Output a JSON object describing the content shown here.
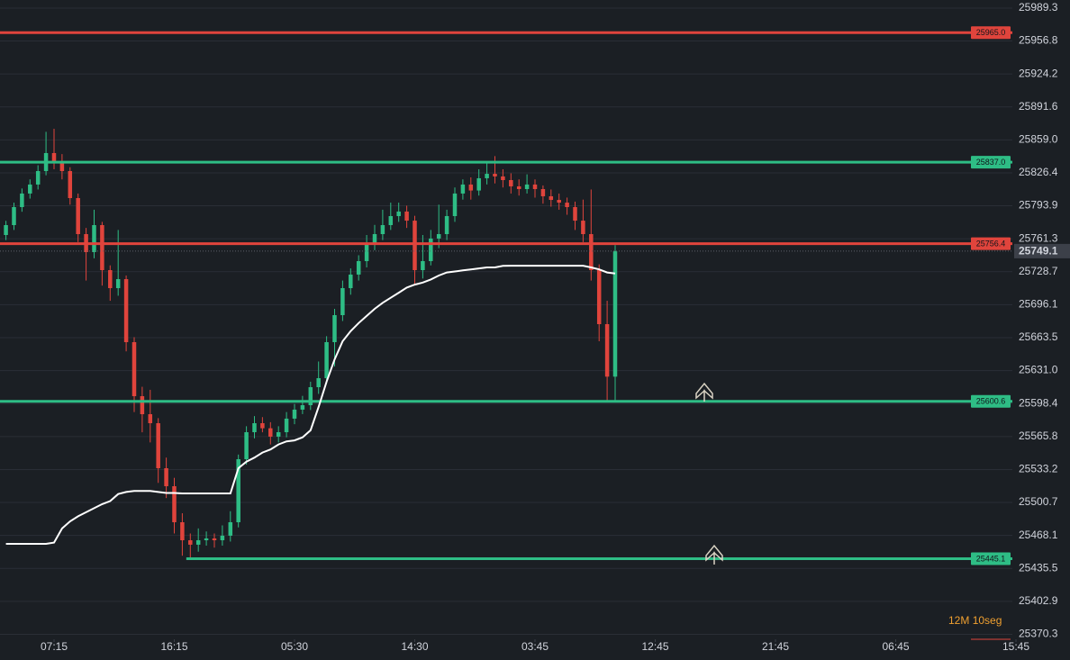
{
  "chart_data": {
    "type": "candlestick",
    "up_color": "#2ebd85",
    "down_color": "#e0443c",
    "x": [
      -6,
      -5,
      -4,
      -3,
      -2,
      -1,
      0,
      1,
      2,
      3,
      4,
      5,
      6,
      7,
      8,
      9,
      10,
      11,
      12,
      13,
      14,
      15,
      16,
      17,
      18,
      19,
      20,
      21,
      22,
      23,
      24,
      25,
      26,
      27,
      28,
      29,
      30,
      31,
      32,
      33,
      34,
      35,
      36,
      37,
      38,
      39,
      40,
      41,
      42,
      43,
      44,
      45,
      46,
      47,
      48,
      49,
      50,
      51,
      52,
      53,
      54,
      55,
      56,
      57,
      58,
      59,
      60,
      61,
      62,
      63,
      64,
      65,
      66,
      67,
      68,
      69,
      70
    ],
    "open": [
      25765.0,
      25774.8,
      25792.6,
      25806.0,
      25814.9,
      25828.2,
      25846.0,
      25837.1,
      25828.2,
      25801.5,
      25765.9,
      25748.1,
      25774.8,
      25730.3,
      25712.5,
      25721.4,
      25659.1,
      25605.7,
      25587.9,
      25579.0,
      25534.5,
      25516.7,
      25481.1,
      25463.3,
      25458.9,
      25463.3,
      25465.1,
      25463.3,
      25467.8,
      25481.1,
      25543.4,
      25570.1,
      25579.0,
      25574.0,
      25565.7,
      25570.1,
      25583.5,
      25592.4,
      25596.8,
      25614.6,
      25623.5,
      25659.1,
      25685.8,
      25712.5,
      25725.9,
      25739.2,
      25757.0,
      25765.9,
      25774.8,
      25783.7,
      25788.2,
      25779.2,
      25730.3,
      25739.2,
      25761.5,
      25765.9,
      25783.7,
      25806.0,
      25814.9,
      25809.0,
      25821.1,
      25825.5,
      25822.9,
      25819.3,
      25813.1,
      25810.4,
      25814.9,
      25810.4,
      25803.3,
      25799.7,
      25797.0,
      25792.6,
      25779.2,
      25765.9,
      25730.3,
      25676.9,
      25625.0
    ],
    "high": [
      25779.0,
      25797.0,
      25811.0,
      25820.0,
      25834.0,
      25867.0,
      25870.0,
      25845.0,
      25832.0,
      25806.0,
      25772.0,
      25790.0,
      25778.0,
      25735.0,
      25770.0,
      25725.0,
      25664.0,
      25615.0,
      25612.0,
      25584.0,
      25545.0,
      25525.0,
      25490.0,
      25470.0,
      25475.0,
      25472.0,
      25470.0,
      25478.0,
      25492.0,
      25548.0,
      25576.0,
      25586.0,
      25585.0,
      25580.0,
      25576.0,
      25590.0,
      25598.0,
      25606.0,
      25620.0,
      25640.0,
      25665.0,
      25692.0,
      25720.0,
      25732.0,
      25745.0,
      25765.0,
      25775.0,
      25790.0,
      25797.0,
      25797.0,
      25794.0,
      25784.0,
      25765.0,
      25770.0,
      25795.0,
      25790.0,
      25812.0,
      25820.0,
      25822.0,
      25830.0,
      25838.0,
      25843.0,
      25830.0,
      25826.0,
      25820.0,
      25825.0,
      25820.0,
      25814.0,
      25810.0,
      25806.0,
      25802.0,
      25798.0,
      25800.0,
      25810.0,
      25736.0,
      25700.0,
      25755.0
    ],
    "low": [
      25760.0,
      25770.0,
      25788.0,
      25801.0,
      25810.0,
      25824.0,
      25830.0,
      25820.0,
      25795.0,
      25758.0,
      25720.0,
      25742.0,
      25715.0,
      25700.0,
      25705.0,
      25650.0,
      25590.0,
      25570.0,
      25560.0,
      25520.0,
      25505.0,
      25470.0,
      25448.0,
      25445.1,
      25452.0,
      25458.0,
      25456.0,
      25458.0,
      25462.0,
      25476.0,
      25538.0,
      25564.0,
      25570.0,
      25558.0,
      25560.0,
      25565.0,
      25578.0,
      25588.0,
      25592.0,
      25608.0,
      25618.0,
      25635.0,
      25680.0,
      25706.0,
      25720.0,
      25733.0,
      25750.0,
      25760.0,
      25770.0,
      25778.0,
      25772.0,
      25716.0,
      25722.0,
      25735.0,
      25752.0,
      25760.0,
      25778.0,
      25800.0,
      25800.0,
      25804.0,
      25815.0,
      25816.0,
      25812.0,
      25806.0,
      25804.0,
      25806.0,
      25802.0,
      25796.0,
      25793.0,
      25790.0,
      25785.0,
      25770.0,
      25758.0,
      25720.0,
      25660.0,
      25600.6,
      25600.6
    ],
    "close": [
      25774.8,
      25792.6,
      25806.0,
      25814.9,
      25828.2,
      25846.0,
      25837.1,
      25828.2,
      25801.5,
      25765.9,
      25748.1,
      25774.8,
      25730.3,
      25712.5,
      25721.4,
      25659.1,
      25605.7,
      25587.9,
      25579.0,
      25534.5,
      25516.7,
      25481.1,
      25463.3,
      25458.9,
      25463.3,
      25465.1,
      25463.3,
      25467.8,
      25481.1,
      25543.4,
      25570.1,
      25579.0,
      25574.0,
      25565.7,
      25570.1,
      25583.5,
      25592.4,
      25596.8,
      25614.6,
      25623.5,
      25659.1,
      25685.8,
      25712.5,
      25725.9,
      25739.2,
      25757.0,
      25765.9,
      25774.8,
      25783.7,
      25788.2,
      25779.2,
      25730.3,
      25739.2,
      25761.5,
      25765.9,
      25783.7,
      25806.0,
      25814.9,
      25809.0,
      25821.1,
      25825.5,
      25822.9,
      25819.3,
      25813.1,
      25810.4,
      25814.9,
      25810.4,
      25803.3,
      25799.7,
      25797.0,
      25792.6,
      25779.2,
      25765.9,
      25730.3,
      25676.9,
      25625.0,
      25749.1
    ],
    "vwap": {
      "color": "#ffffff",
      "values": [
        25459.7,
        25459.7,
        25459.7,
        25459.7,
        25459.7,
        25459.7,
        25461,
        25475,
        25482,
        25487,
        25491,
        25495,
        25499,
        25502,
        25509,
        25511,
        25512,
        25512,
        25512,
        25511,
        25510,
        25510,
        25509.6,
        25509.6,
        25509.6,
        25509.6,
        25509.6,
        25509.6,
        25509.6,
        25534.5,
        25541,
        25545,
        25550,
        25553,
        25558,
        25561,
        25562,
        25565,
        25572,
        25595,
        25620,
        25642,
        25660,
        25670,
        25678,
        25685,
        25692,
        25698,
        25703,
        25708,
        25713,
        25716,
        25718,
        25721,
        25725,
        25728,
        25729,
        25730,
        25731,
        25732,
        25733,
        25733,
        25734.5,
        25734.7,
        25734.7,
        25734.7,
        25734.7,
        25734.7,
        25734.7,
        25734.7,
        25734.7,
        25734.7,
        25734.7,
        25733,
        25731,
        25728,
        25727
      ]
    },
    "levels": [
      {
        "value": 25965.0,
        "label": "25965.0",
        "color": "#e0443c"
      },
      {
        "value": 25837.0,
        "label": "25837.0",
        "color": "#2ebd85"
      },
      {
        "value": 25756.4,
        "label": "25756.4",
        "color": "#e0443c"
      },
      {
        "value": 25600.6,
        "label": "25600.6",
        "color": "#2ebd85"
      },
      {
        "value": 25445.1,
        "label": "25445.1",
        "color": "#2ebd85",
        "x_start": 16.5
      }
    ],
    "xlim": [
      -6.74,
      126.74
    ],
    "ylim": [
      25365.4,
      25997.3
    ],
    "yticks": [
      25989.3,
      25956.8,
      25924.2,
      25891.6,
      {
        "value": 25859.0,
        "label": "25859.0"
      },
      25826.4,
      25793.9,
      25761.3,
      25728.7,
      25696.1,
      25663.5,
      {
        "value": 25631.0,
        "label": "25631.0"
      },
      25598.4,
      25565.8,
      25533.2,
      25500.7,
      25468.1,
      25435.5,
      25402.9,
      25370.3
    ],
    "xticks": [
      {
        "value": 0,
        "label": "07:15"
      },
      {
        "value": 15,
        "label": "16:15"
      },
      {
        "value": 30,
        "label": "05:30"
      },
      {
        "value": 45,
        "label": "14:30"
      },
      {
        "value": 60,
        "label": "03:45"
      },
      {
        "value": 75,
        "label": "12:45"
      },
      {
        "value": 90,
        "label": "21:45"
      },
      {
        "value": 105,
        "label": "06:45"
      },
      {
        "value": 120,
        "label": "15:45"
      }
    ],
    "grid": true,
    "interval": "12M",
    "countdown": "10seg"
  }
}
